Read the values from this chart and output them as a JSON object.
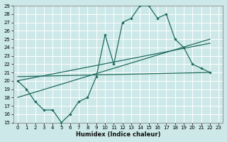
{
  "xlabel": "Humidex (Indice chaleur)",
  "ylabel": "",
  "xlim": [
    -0.5,
    23.5
  ],
  "ylim": [
    15,
    29
  ],
  "xticks": [
    0,
    1,
    2,
    3,
    4,
    5,
    6,
    7,
    8,
    9,
    10,
    11,
    12,
    13,
    14,
    15,
    16,
    17,
    18,
    19,
    20,
    21,
    22,
    23
  ],
  "yticks": [
    15,
    16,
    17,
    18,
    19,
    20,
    21,
    22,
    23,
    24,
    25,
    26,
    27,
    28,
    29
  ],
  "background_color": "#cde8e8",
  "line_color": "#1e6b5e",
  "grid_color": "#b0d0d0",
  "jagged_x": [
    0,
    1,
    2,
    3,
    4,
    5,
    6,
    7,
    8,
    9,
    10,
    11,
    12,
    13,
    14,
    15,
    16,
    17,
    18,
    19,
    20,
    21,
    22
  ],
  "jagged_y": [
    20,
    19,
    17.5,
    16.5,
    16.5,
    15,
    16,
    17.5,
    18,
    20.5,
    25.5,
    22,
    27,
    27.5,
    29,
    29,
    27.5,
    28,
    25,
    24,
    22,
    21.5,
    21
  ],
  "line1_x": [
    0,
    22
  ],
  "line1_y": [
    20.5,
    21
  ],
  "line2_x": [
    0,
    22
  ],
  "line2_y": [
    18,
    25
  ],
  "line3_x": [
    0,
    22
  ],
  "line3_y": [
    20,
    24.5
  ]
}
